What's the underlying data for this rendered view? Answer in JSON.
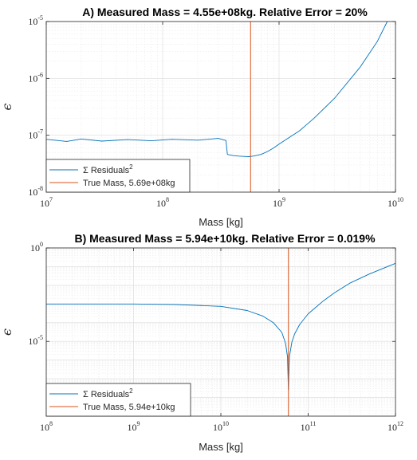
{
  "chart_data": [
    {
      "type": "line",
      "panel_label": "A)",
      "title": "Measured Mass = 4.55e+08kg. Relative Error = 20%",
      "xlabel": "Mass [kg]",
      "ylabel": "ϵ",
      "x_scale": "log",
      "y_scale": "log",
      "xlim": [
        10000000.0,
        10000000000.0
      ],
      "ylim": [
        1e-08,
        1e-05
      ],
      "x_ticks": [
        {
          "base": "10",
          "exp": "7",
          "value": 10000000.0
        },
        {
          "base": "10",
          "exp": "8",
          "value": 100000000.0
        },
        {
          "base": "10",
          "exp": "9",
          "value": 1000000000.0
        },
        {
          "base": "10",
          "exp": "10",
          "value": 10000000000.0
        }
      ],
      "y_ticks": [
        {
          "base": "10",
          "exp": "-8",
          "value": 1e-08
        },
        {
          "base": "10",
          "exp": "-7",
          "value": 1e-07
        },
        {
          "base": "10",
          "exp": "-6",
          "value": 1e-06
        },
        {
          "base": "10",
          "exp": "-5",
          "value": 1e-05
        }
      ],
      "grid": true,
      "legend_position": "bottom-left",
      "legend": [
        {
          "name": "Σ Residuals",
          "sup": "2",
          "color": "#0072BD"
        },
        {
          "name": "True Mass, 5.69e+08kg",
          "sup": "",
          "color": "#D95319"
        }
      ],
      "series": [
        {
          "name": "Σ Residuals²",
          "color": "#0072BD",
          "x": [
            10000000.0,
            15000000.0,
            20000000.0,
            30000000.0,
            50000000.0,
            80000000.0,
            120000000.0,
            200000000.0,
            300000000.0,
            350000000.0,
            360000000.0,
            400000000.0,
            450000000.0,
            500000000.0,
            550000000.0,
            600000000.0,
            700000000.0,
            800000000.0,
            900000000.0,
            1000000000.0,
            1500000000.0,
            2000000000.0,
            3000000000.0,
            5000000000.0,
            7000000000.0,
            8500000000.0
          ],
          "y": [
            8.5e-08,
            7.8e-08,
            8.6e-08,
            7.9e-08,
            8.4e-08,
            8e-08,
            8.5e-08,
            8.2e-08,
            8.8e-08,
            8.1e-08,
            4.6e-08,
            4.4e-08,
            4.3e-08,
            4.25e-08,
            4.2e-08,
            4.3e-08,
            4.6e-08,
            5.2e-08,
            6e-08,
            7e-08,
            1.2e-07,
            2e-07,
            4.5e-07,
            1.6e-06,
            4.5e-06,
            1e-05
          ]
        }
      ],
      "vlines": [
        {
          "name": "True Mass, 5.69e+08kg",
          "x": 569000000.0,
          "color": "#D95319"
        }
      ]
    },
    {
      "type": "line",
      "panel_label": "B)",
      "title": "Measured Mass = 5.94e+10kg. Relative Error = 0.019%",
      "xlabel": "Mass [kg]",
      "ylabel": "ϵ",
      "x_scale": "log",
      "y_scale": "log",
      "xlim": [
        100000000.0,
        1000000000000.0
      ],
      "ylim": [
        1e-09,
        1
      ],
      "x_ticks": [
        {
          "base": "10",
          "exp": "8",
          "value": 100000000.0
        },
        {
          "base": "10",
          "exp": "9",
          "value": 1000000000.0
        },
        {
          "base": "10",
          "exp": "10",
          "value": 10000000000.0
        },
        {
          "base": "10",
          "exp": "11",
          "value": 100000000000.0
        },
        {
          "base": "10",
          "exp": "12",
          "value": 1000000000000.0
        }
      ],
      "y_ticks": [
        {
          "base": "10",
          "exp": "0",
          "value": 1
        },
        {
          "base": "10",
          "exp": "-5",
          "value": 1e-05
        }
      ],
      "grid": true,
      "legend_position": "bottom-left",
      "legend": [
        {
          "name": "Σ Residuals",
          "sup": "2",
          "color": "#0072BD"
        },
        {
          "name": "True Mass, 5.94e+10kg",
          "sup": "",
          "color": "#D95319"
        }
      ],
      "series": [
        {
          "name": "Σ Residuals²",
          "color": "#0072BD",
          "x": [
            100000000.0,
            1000000000.0,
            3000000000.0,
            10000000000.0,
            20000000000.0,
            30000000000.0,
            40000000000.0,
            50000000000.0,
            55000000000.0,
            58000000000.0,
            59400000000.0,
            61000000000.0,
            65000000000.0,
            70000000000.0,
            80000000000.0,
            100000000000.0,
            150000000000.0,
            200000000000.0,
            300000000000.0,
            500000000000.0,
            1000000000000.0
          ],
          "y": [
            0.001,
            0.001,
            0.00095,
            0.00075,
            0.00045,
            0.00023,
            0.0001,
            3e-05,
            8e-06,
            1.5e-06,
            2.5e-08,
            1.5e-06,
            9e-06,
            2.5e-05,
            8e-05,
            0.0003,
            0.0015,
            0.004,
            0.013,
            0.04,
            0.15
          ]
        }
      ],
      "vlines": [
        {
          "name": "True Mass, 5.94e+10kg",
          "x": 59400000000.0,
          "color": "#D95319"
        }
      ]
    }
  ]
}
